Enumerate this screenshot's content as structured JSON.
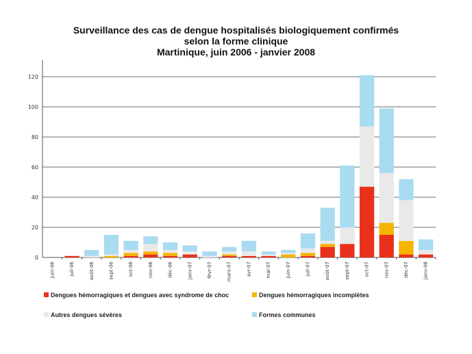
{
  "chart_data": {
    "type": "bar",
    "stacked": true,
    "title_lines": [
      "Surveillance des cas de dengue hospitalisés biologiquement confirmés",
      "selon la forme clinique",
      "Martinique, juin 2006 - janvier 2008"
    ],
    "xlabel": "",
    "ylabel": "",
    "ylim": [
      0,
      130
    ],
    "yticks": [
      0,
      20,
      40,
      60,
      80,
      100,
      120
    ],
    "grid": true,
    "legend_position": "bottom",
    "categories": [
      "juin-06",
      "juil-06",
      "août-06",
      "sept-06",
      "oct-06",
      "nov-06",
      "déc-06",
      "janv-07",
      "févr-07",
      "mars-07",
      "avr-07",
      "mai-07",
      "juin-07",
      "juil-07",
      "août-07",
      "sept-07",
      "oct-07",
      "nov-07",
      "déc-07",
      "janv-08"
    ],
    "series": [
      {
        "name": "Dengues hémorragiques et dengues avec syndrome de choc",
        "color": "#e8311a",
        "values": [
          0,
          1,
          0,
          0,
          1,
          2,
          1,
          2,
          0,
          1,
          1,
          1,
          0,
          1,
          7,
          9,
          47,
          15,
          2,
          2
        ]
      },
      {
        "name": "Dengues hémorragiques incomplètes",
        "color": "#f5b400",
        "values": [
          0,
          0,
          0,
          1,
          2,
          2,
          2,
          0,
          0,
          1,
          0,
          0,
          2,
          2,
          2,
          0,
          0,
          8,
          9,
          0
        ]
      },
      {
        "name": "Autres dengues sévères",
        "color": "#e9e9e9",
        "values": [
          0,
          0,
          1,
          1,
          2,
          5,
          2,
          2,
          1,
          2,
          3,
          1,
          1,
          3,
          2,
          11,
          40,
          33,
          27,
          3
        ]
      },
      {
        "name": "Formes communes",
        "color": "#a9dbf1",
        "values": [
          0,
          0,
          4,
          13,
          6,
          5,
          5,
          4,
          3,
          3,
          7,
          2,
          2,
          10,
          22,
          41,
          34,
          43,
          14,
          7
        ]
      }
    ]
  }
}
